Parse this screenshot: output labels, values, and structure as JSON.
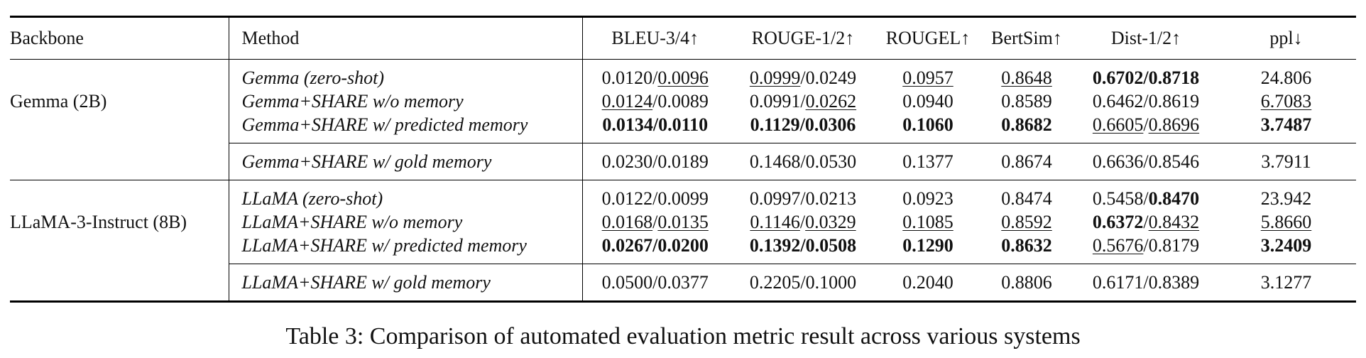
{
  "table": {
    "headers": [
      "Backbone",
      "Method",
      "BLEU-3/4↑",
      "ROUGE-1/2↑",
      "ROUGEL↑",
      "BertSim↑",
      "Dist-1/2↑",
      "ppl↓"
    ],
    "groups": [
      {
        "backbone": "Gemma (2B)",
        "rows": [
          {
            "method": "Gemma (zero-shot)",
            "bleu3": "0.0120",
            "bleu4": "0.0096",
            "rouge1": "0.0999",
            "rouge2": "0.0249",
            "rougel": "0.0957",
            "bertsim": "0.8648",
            "dist1": "0.6702",
            "dist2": "0.8718",
            "ppl": "24.806"
          },
          {
            "method": "Gemma+SHARE w/o memory",
            "bleu3": "0.0124",
            "bleu4": "0.0089",
            "rouge1": "0.0991",
            "rouge2": "0.0262",
            "rougel": "0.0940",
            "bertsim": "0.8589",
            "dist1": "0.6462",
            "dist2": "0.8619",
            "ppl": "6.7083"
          },
          {
            "method": "Gemma+SHARE w/ predicted memory",
            "bleu3": "0.0134",
            "bleu4": "0.0110",
            "rouge1": "0.1129",
            "rouge2": "0.0306",
            "rougel": "0.1060",
            "bertsim": "0.8682",
            "dist1": "0.6605",
            "dist2": "0.8696",
            "ppl": "3.7487"
          }
        ],
        "gold": {
          "method": "Gemma+SHARE w/ gold memory",
          "bleu3": "0.0230",
          "bleu4": "0.0189",
          "rouge1": "0.1468",
          "rouge2": "0.0530",
          "rougel": "0.1377",
          "bertsim": "0.8674",
          "dist1": "0.6636",
          "dist2": "0.8546",
          "ppl": "3.7911"
        }
      },
      {
        "backbone": "LLaMA-3-Instruct (8B)",
        "rows": [
          {
            "method": "LLaMA (zero-shot)",
            "bleu3": "0.0122",
            "bleu4": "0.0099",
            "rouge1": "0.0997",
            "rouge2": "0.0213",
            "rougel": "0.0923",
            "bertsim": "0.8474",
            "dist1": "0.5458",
            "dist2": "0.8470",
            "ppl": "23.942"
          },
          {
            "method": "LLaMA+SHARE w/o memory",
            "bleu3": "0.0168",
            "bleu4": "0.0135",
            "rouge1": "0.1146",
            "rouge2": "0.0329",
            "rougel": "0.1085",
            "bertsim": "0.8592",
            "dist1": "0.6372",
            "dist2": "0.8432",
            "ppl": "5.8660"
          },
          {
            "method": "LLaMA+SHARE w/ predicted memory",
            "bleu3": "0.0267",
            "bleu4": "0.0200",
            "rouge1": "0.1392",
            "rouge2": "0.0508",
            "rougel": "0.1290",
            "bertsim": "0.8632",
            "dist1": "0.5676",
            "dist2": "0.8179",
            "ppl": "3.2409"
          }
        ],
        "gold": {
          "method": "LLaMA+SHARE w/ gold memory",
          "bleu3": "0.0500",
          "bleu4": "0.0377",
          "rouge1": "0.2205",
          "rouge2": "0.1000",
          "rougel": "0.2040",
          "bertsim": "0.8806",
          "dist1": "0.6171",
          "dist2": "0.8389",
          "ppl": "3.1277"
        }
      }
    ]
  },
  "caption": "Table 3: Comparison of automated evaluation metric result across various systems"
}
